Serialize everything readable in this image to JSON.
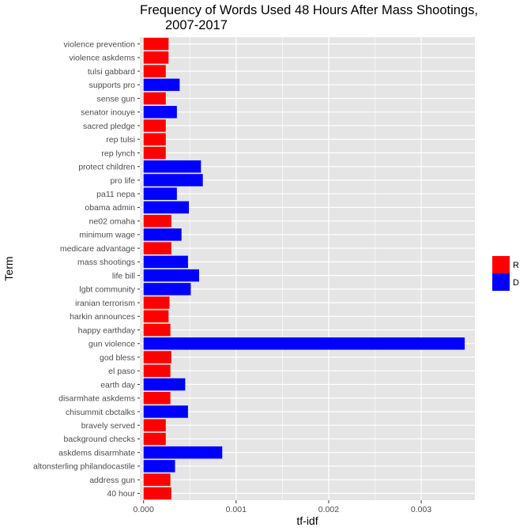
{
  "chart_data": {
    "type": "bar",
    "orientation": "horizontal",
    "title": "Frequency of Words Used 48 Hours After Mass Shootings, 2007-2017",
    "title_line1": "Frequency of Words Used 48 Hours After Mass Shootings,",
    "title_line2": "2007-2017",
    "xlabel": "tf-idf",
    "ylabel": "Term",
    "xlim": [
      -4e-05,
      0.00358
    ],
    "xticks": [
      0,
      0.001,
      0.002,
      0.003
    ],
    "xtick_labels": [
      "0.000",
      "0.001",
      "0.002",
      "0.003"
    ],
    "grid": true,
    "legend_position": "right",
    "legend": [
      {
        "label": "R",
        "color": "#ff0000"
      },
      {
        "label": "D",
        "color": "#0000ff"
      }
    ],
    "colors": {
      "R": "#ff0000",
      "D": "#0000ff",
      "panel": "#e5e5e5",
      "grid": "#ffffff"
    },
    "bars": [
      {
        "term": "violence prevention",
        "value": 0.00027,
        "party": "R"
      },
      {
        "term": "violence askdems",
        "value": 0.00027,
        "party": "R"
      },
      {
        "term": "tulsi gabbard",
        "value": 0.00024,
        "party": "R"
      },
      {
        "term": "supports pro",
        "value": 0.00039,
        "party": "D"
      },
      {
        "term": "sense gun",
        "value": 0.00024,
        "party": "R"
      },
      {
        "term": "senator inouye",
        "value": 0.00036,
        "party": "D"
      },
      {
        "term": "sacred pledge",
        "value": 0.00024,
        "party": "R"
      },
      {
        "term": "rep tulsi",
        "value": 0.00024,
        "party": "R"
      },
      {
        "term": "rep lynch",
        "value": 0.00024,
        "party": "R"
      },
      {
        "term": "protect children",
        "value": 0.00062,
        "party": "D"
      },
      {
        "term": "pro life",
        "value": 0.00064,
        "party": "D"
      },
      {
        "term": "pa11 nepa",
        "value": 0.00036,
        "party": "D"
      },
      {
        "term": "obama admin",
        "value": 0.00049,
        "party": "D"
      },
      {
        "term": "ne02 omaha",
        "value": 0.0003,
        "party": "R"
      },
      {
        "term": "minimum wage",
        "value": 0.00041,
        "party": "D"
      },
      {
        "term": "medicare advantage",
        "value": 0.0003,
        "party": "R"
      },
      {
        "term": "mass shootings",
        "value": 0.00048,
        "party": "D"
      },
      {
        "term": "life bill",
        "value": 0.0006,
        "party": "D"
      },
      {
        "term": "lgbt community",
        "value": 0.00051,
        "party": "D"
      },
      {
        "term": "iranian terrorism",
        "value": 0.00028,
        "party": "R"
      },
      {
        "term": "harkin announces",
        "value": 0.00027,
        "party": "R"
      },
      {
        "term": "happy earthday",
        "value": 0.00029,
        "party": "R"
      },
      {
        "term": "gun violence",
        "value": 0.00347,
        "party": "D"
      },
      {
        "term": "god bless",
        "value": 0.0003,
        "party": "R"
      },
      {
        "term": "el paso",
        "value": 0.00029,
        "party": "R"
      },
      {
        "term": "earth day",
        "value": 0.00045,
        "party": "D"
      },
      {
        "term": "disarmhate askdems",
        "value": 0.00029,
        "party": "R"
      },
      {
        "term": "chisummit cbctalks",
        "value": 0.00048,
        "party": "D"
      },
      {
        "term": "bravely served",
        "value": 0.00024,
        "party": "R"
      },
      {
        "term": "background checks",
        "value": 0.00024,
        "party": "R"
      },
      {
        "term": "askdems disarmhate",
        "value": 0.00085,
        "party": "D"
      },
      {
        "term": "altonsterling philandocastile",
        "value": 0.00034,
        "party": "D"
      },
      {
        "term": "address gun",
        "value": 0.00029,
        "party": "R"
      },
      {
        "term": "40 hour",
        "value": 0.0003,
        "party": "R"
      }
    ]
  }
}
